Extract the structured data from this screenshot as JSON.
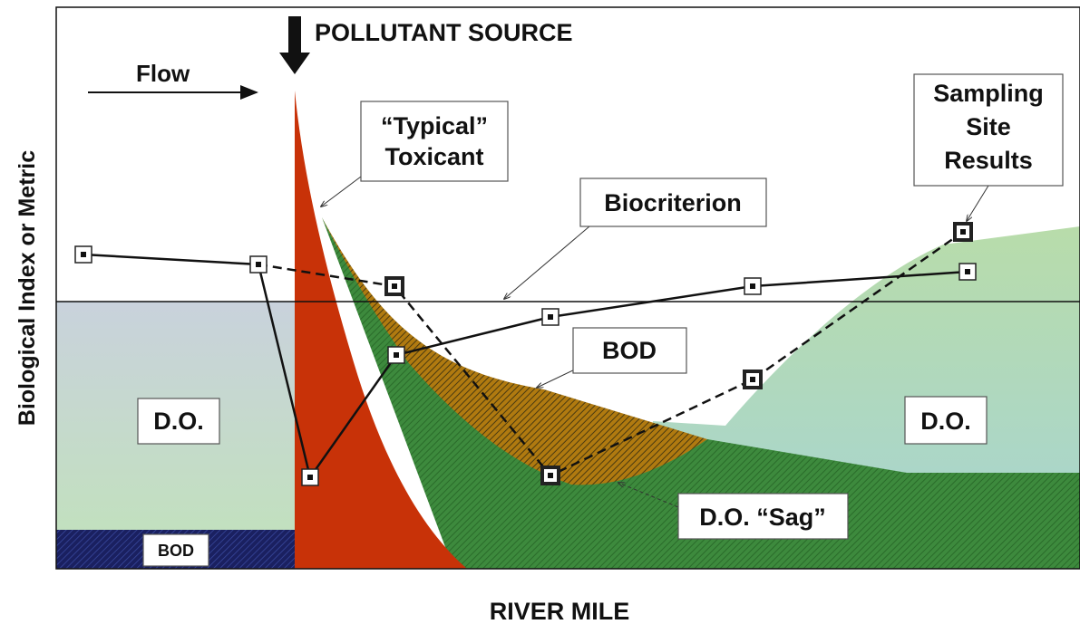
{
  "axes": {
    "y_label": "Biological Index or Metric",
    "x_label": "RIVER MILE"
  },
  "labels": {
    "pollutant_source": "POLLUTANT SOURCE",
    "flow": "Flow",
    "toxicant": [
      "“Typical”",
      "Toxicant"
    ],
    "sampling": [
      "Sampling",
      "Site",
      "Results"
    ],
    "biocriterion": "Biocriterion",
    "bod_curve": "BOD",
    "do_left": "D.O.",
    "do_right": "D.O.",
    "bod_base": "BOD",
    "do_sag": "D.O. “Sag”"
  }
}
